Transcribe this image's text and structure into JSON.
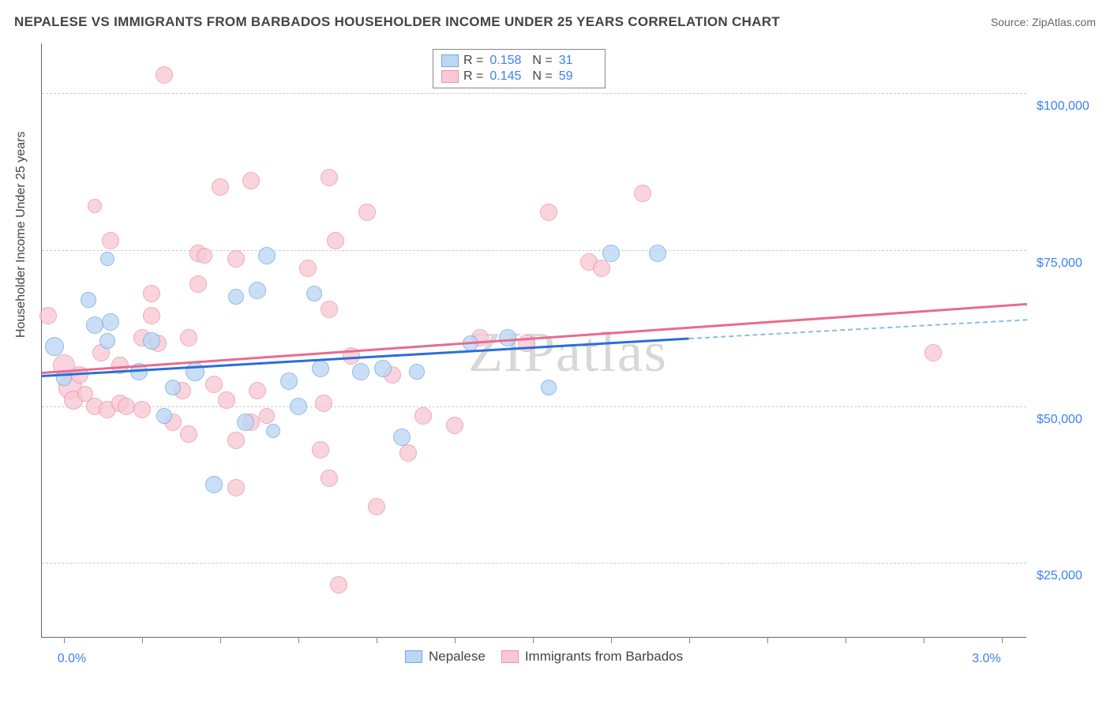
{
  "title": "NEPALESE VS IMMIGRANTS FROM BARBADOS HOUSEHOLDER INCOME UNDER 25 YEARS CORRELATION CHART",
  "source": "Source: ZipAtlas.com",
  "watermark": "ZIPatlas",
  "chart": {
    "type": "scatter",
    "y_axis_label": "Householder Income Under 25 years",
    "xlim": [
      -0.07,
      3.08
    ],
    "ylim": [
      13000,
      108000
    ],
    "x_ticks": [
      0.0,
      0.25,
      0.5,
      0.75,
      1.0,
      1.25,
      1.5,
      1.75,
      2.0,
      2.25,
      2.5,
      2.75,
      3.0
    ],
    "x_tick_labels": {
      "0": "0.0%",
      "3": "3.0%"
    },
    "y_grid": [
      25000,
      50000,
      75000,
      100000
    ],
    "y_tick_labels": {
      "25000": "$25,000",
      "50000": "$50,000",
      "75000": "$75,000",
      "100000": "$100,000"
    },
    "grid_color": "#cccccc",
    "background_color": "#ffffff",
    "tick_label_color": "#3b82f6",
    "axis_label_color": "#444444",
    "series": {
      "a": {
        "name": "Nepalese",
        "fill": "#bcd7f4",
        "stroke": "#6fa8e8",
        "opacity": 0.78,
        "r_default": 11,
        "R": "0.158",
        "N": "31",
        "reg": {
          "x0": -0.07,
          "y0": 55000,
          "x1": 2.0,
          "y1": 61000,
          "x2": 3.08,
          "y2": 64000,
          "color": "#2a6edb",
          "dash_color": "#8fb8e8"
        },
        "points": [
          {
            "x": -0.03,
            "y": 59500,
            "r": 12
          },
          {
            "x": 0.0,
            "y": 54500,
            "r": 10
          },
          {
            "x": 0.08,
            "y": 67000,
            "r": 10
          },
          {
            "x": 0.1,
            "y": 63000,
            "r": 11
          },
          {
            "x": 0.15,
            "y": 63500,
            "r": 11
          },
          {
            "x": 0.14,
            "y": 60500,
            "r": 10
          },
          {
            "x": 0.14,
            "y": 73500,
            "r": 9
          },
          {
            "x": 0.28,
            "y": 60500,
            "r": 11
          },
          {
            "x": 0.24,
            "y": 55500,
            "r": 11
          },
          {
            "x": 0.32,
            "y": 48500,
            "r": 10
          },
          {
            "x": 0.35,
            "y": 53000,
            "r": 10
          },
          {
            "x": 0.42,
            "y": 55500,
            "r": 12
          },
          {
            "x": 0.48,
            "y": 37500,
            "r": 11
          },
          {
            "x": 0.55,
            "y": 67500,
            "r": 10
          },
          {
            "x": 0.58,
            "y": 47500,
            "r": 11
          },
          {
            "x": 0.62,
            "y": 68500,
            "r": 11
          },
          {
            "x": 0.65,
            "y": 74000,
            "r": 11
          },
          {
            "x": 0.67,
            "y": 46000,
            "r": 9
          },
          {
            "x": 0.72,
            "y": 54000,
            "r": 11
          },
          {
            "x": 0.75,
            "y": 50000,
            "r": 11
          },
          {
            "x": 0.8,
            "y": 68000,
            "r": 10
          },
          {
            "x": 0.82,
            "y": 56000,
            "r": 11
          },
          {
            "x": 0.95,
            "y": 55500,
            "r": 11
          },
          {
            "x": 1.02,
            "y": 56000,
            "r": 11
          },
          {
            "x": 1.08,
            "y": 45000,
            "r": 11
          },
          {
            "x": 1.13,
            "y": 55500,
            "r": 10
          },
          {
            "x": 1.42,
            "y": 61000,
            "r": 11
          },
          {
            "x": 1.55,
            "y": 53000,
            "r": 10
          },
          {
            "x": 1.75,
            "y": 74500,
            "r": 11
          },
          {
            "x": 1.9,
            "y": 74500,
            "r": 11
          },
          {
            "x": 1.3,
            "y": 60000,
            "r": 10
          }
        ]
      },
      "b": {
        "name": "Immigants from Barbados",
        "display_name": "Immigrants from Barbados",
        "fill": "#f8c9d4",
        "stroke": "#ec92aa",
        "opacity": 0.78,
        "r_default": 11,
        "R": "0.145",
        "N": "59",
        "reg": {
          "x0": -0.07,
          "y0": 55500,
          "x1": 3.08,
          "y1": 66500,
          "color": "#e86b8f"
        },
        "points": [
          {
            "x": -0.05,
            "y": 64500,
            "r": 11
          },
          {
            "x": 0.0,
            "y": 56500,
            "r": 14
          },
          {
            "x": 0.02,
            "y": 53000,
            "r": 15
          },
          {
            "x": 0.03,
            "y": 51000,
            "r": 12
          },
          {
            "x": 0.05,
            "y": 55000,
            "r": 11
          },
          {
            "x": 0.07,
            "y": 52000,
            "r": 10
          },
          {
            "x": 0.1,
            "y": 50000,
            "r": 11
          },
          {
            "x": 0.1,
            "y": 82000,
            "r": 9
          },
          {
            "x": 0.12,
            "y": 58500,
            "r": 11
          },
          {
            "x": 0.14,
            "y": 49500,
            "r": 11
          },
          {
            "x": 0.18,
            "y": 50500,
            "r": 11
          },
          {
            "x": 0.15,
            "y": 76500,
            "r": 11
          },
          {
            "x": 0.18,
            "y": 56500,
            "r": 11
          },
          {
            "x": 0.2,
            "y": 50000,
            "r": 11
          },
          {
            "x": 0.25,
            "y": 61000,
            "r": 11
          },
          {
            "x": 0.25,
            "y": 49500,
            "r": 11
          },
          {
            "x": 0.28,
            "y": 64500,
            "r": 11
          },
          {
            "x": 0.3,
            "y": 60000,
            "r": 11
          },
          {
            "x": 0.28,
            "y": 68000,
            "r": 11
          },
          {
            "x": 0.32,
            "y": 103000,
            "r": 11
          },
          {
            "x": 0.35,
            "y": 47500,
            "r": 11
          },
          {
            "x": 0.38,
            "y": 52500,
            "r": 11
          },
          {
            "x": 0.4,
            "y": 45500,
            "r": 11
          },
          {
            "x": 0.4,
            "y": 61000,
            "r": 11
          },
          {
            "x": 0.43,
            "y": 74500,
            "r": 11
          },
          {
            "x": 0.43,
            "y": 69500,
            "r": 11
          },
          {
            "x": 0.45,
            "y": 74000,
            "r": 10
          },
          {
            "x": 0.48,
            "y": 53500,
            "r": 11
          },
          {
            "x": 0.5,
            "y": 85000,
            "r": 11
          },
          {
            "x": 0.52,
            "y": 51000,
            "r": 11
          },
          {
            "x": 0.55,
            "y": 44500,
            "r": 11
          },
          {
            "x": 0.55,
            "y": 73500,
            "r": 11
          },
          {
            "x": 0.55,
            "y": 37000,
            "r": 11
          },
          {
            "x": 0.6,
            "y": 47500,
            "r": 11
          },
          {
            "x": 0.6,
            "y": 86000,
            "r": 11
          },
          {
            "x": 0.62,
            "y": 52500,
            "r": 11
          },
          {
            "x": 0.65,
            "y": 48500,
            "r": 10
          },
          {
            "x": 0.78,
            "y": 72000,
            "r": 11
          },
          {
            "x": 0.83,
            "y": 50500,
            "r": 11
          },
          {
            "x": 0.85,
            "y": 86500,
            "r": 11
          },
          {
            "x": 0.85,
            "y": 65500,
            "r": 11
          },
          {
            "x": 0.85,
            "y": 38500,
            "r": 11
          },
          {
            "x": 0.87,
            "y": 76500,
            "r": 11
          },
          {
            "x": 0.82,
            "y": 43000,
            "r": 11
          },
          {
            "x": 0.88,
            "y": 21500,
            "r": 11
          },
          {
            "x": 0.92,
            "y": 58000,
            "r": 11
          },
          {
            "x": 0.97,
            "y": 81000,
            "r": 11
          },
          {
            "x": 1.1,
            "y": 42500,
            "r": 11
          },
          {
            "x": 1.05,
            "y": 55000,
            "r": 11
          },
          {
            "x": 1.0,
            "y": 34000,
            "r": 11
          },
          {
            "x": 1.15,
            "y": 48500,
            "r": 11
          },
          {
            "x": 1.25,
            "y": 47000,
            "r": 11
          },
          {
            "x": 1.33,
            "y": 61000,
            "r": 11
          },
          {
            "x": 1.48,
            "y": 60000,
            "r": 11
          },
          {
            "x": 1.55,
            "y": 81000,
            "r": 11
          },
          {
            "x": 1.68,
            "y": 73000,
            "r": 11
          },
          {
            "x": 1.72,
            "y": 72000,
            "r": 11
          },
          {
            "x": 1.85,
            "y": 84000,
            "r": 11
          },
          {
            "x": 2.78,
            "y": 58500,
            "r": 11
          }
        ]
      }
    }
  },
  "legend_top": {
    "r_label": "R =",
    "n_label": "N ="
  }
}
